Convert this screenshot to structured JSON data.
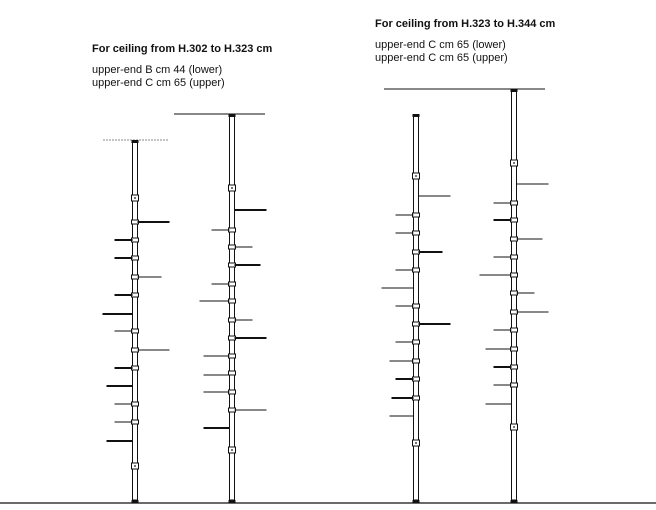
{
  "left_config": {
    "title": "For ceiling from H.302 to H.323 cm",
    "line1": "upper-end B cm 44 (lower)",
    "line2": "upper-end C cm 65 (upper)"
  },
  "right_config": {
    "title": "For ceiling from H.323 to H.344 cm",
    "line1": "upper-end C cm 65 (lower)",
    "line2": "upper-end C cm 65 (upper)"
  }
}
